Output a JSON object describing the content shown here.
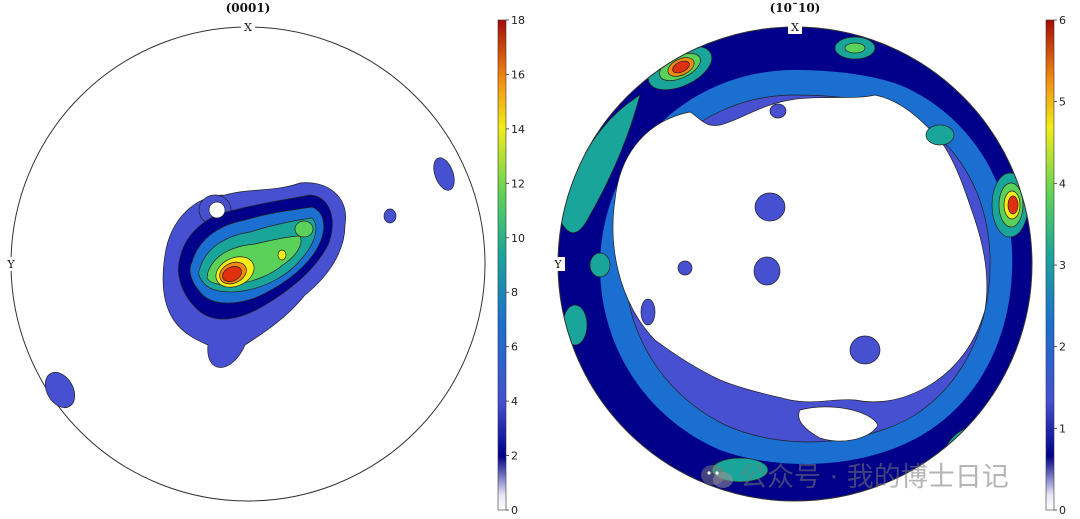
{
  "chart_data": [
    {
      "type": "heatmap",
      "subtype": "pole-figure-contour",
      "title": "(0001)",
      "axis_labels": {
        "top": "X",
        "left": "Y"
      },
      "colorbar": {
        "min": 0,
        "max": 18,
        "ticks": [
          0,
          2,
          4,
          6,
          8,
          10,
          12,
          14,
          16,
          18
        ]
      },
      "contour_levels": [
        1,
        3,
        5,
        7,
        9,
        11,
        14,
        17
      ],
      "peak_value": 17.5
    },
    {
      "type": "heatmap",
      "subtype": "pole-figure-contour",
      "title": "(10Ā0)",
      "title_display": "(10¯10)",
      "axis_labels": {
        "top": "X",
        "left": "Y"
      },
      "colorbar": {
        "min": 0,
        "max": 6,
        "ticks": [
          0,
          1,
          2,
          3,
          4,
          5,
          6
        ]
      },
      "contour_levels": [
        0.5,
        1,
        1.5,
        2,
        3,
        4,
        5,
        5.8
      ],
      "peak_value": 6.0
    }
  ],
  "watermark": {
    "text": "公众号 · 我的博士日记",
    "icon": "wechat-icon"
  }
}
